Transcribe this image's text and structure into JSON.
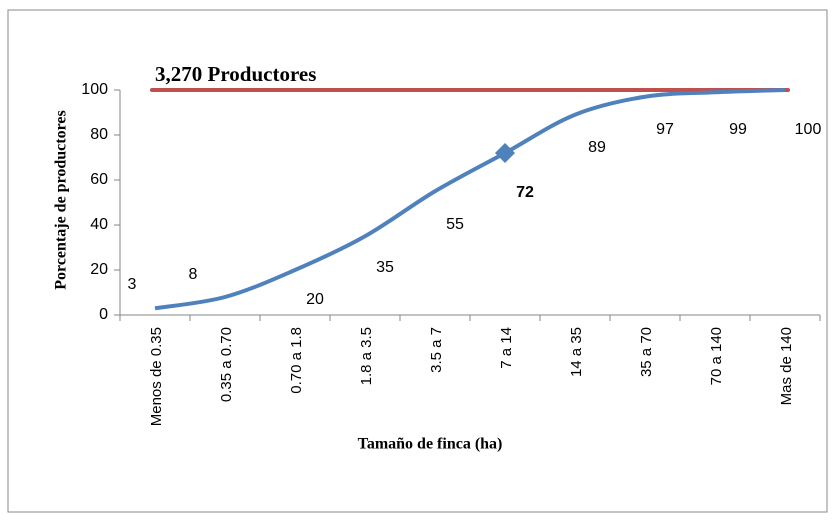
{
  "chart_data": {
    "type": "line",
    "title": "3,270 Productores",
    "x_label": "Tamaño de finca (ha)",
    "y_label": "Porcentaje de productores",
    "categories": [
      "Menos de 0.35",
      "0.35 a 0.70",
      "0.70 a 1.8",
      "1.8 a 3.5",
      "3.5 a 7",
      "7 a 14",
      "14 a 35",
      "35 a 70",
      "70 a 140",
      "Mas de 140"
    ],
    "series": [
      {
        "name": "Porcentaje de productores",
        "color": "#4f81bd",
        "values": [
          3,
          8,
          20,
          35,
          55,
          72,
          89,
          97,
          99,
          100
        ]
      }
    ],
    "reference_line": {
      "value": 100,
      "color": "#c0504d"
    },
    "highlight_index": 5,
    "ylim": [
      0,
      100
    ],
    "yticks": [
      0,
      20,
      40,
      60,
      80,
      100
    ],
    "grid": false
  }
}
